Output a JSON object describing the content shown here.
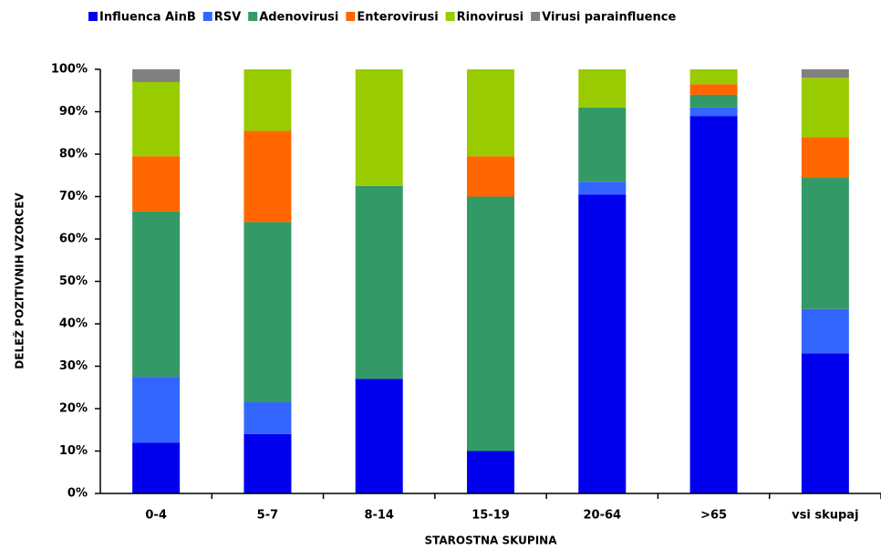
{
  "chart_data": {
    "type": "stacked_bar",
    "categories": [
      "0-4",
      "5-7",
      "8-14",
      "15-19",
      "20-64",
      ">65",
      "vsi skupaj"
    ],
    "series": [
      {
        "name": "Influenca AinB",
        "color": "#0000ee",
        "values": [
          12,
          14,
          27,
          10,
          70.5,
          89,
          33
        ]
      },
      {
        "name": "RSV",
        "color": "#3366ff",
        "values": [
          15.5,
          7.5,
          0,
          0,
          3,
          2,
          10.5
        ]
      },
      {
        "name": "Adenovirusi",
        "color": "#339966",
        "values": [
          39,
          42.5,
          45.5,
          60,
          17.5,
          3,
          31
        ]
      },
      {
        "name": "Enterovirusi",
        "color": "#ff6600",
        "values": [
          13,
          21.5,
          0,
          9.5,
          0,
          2.5,
          9.5
        ]
      },
      {
        "name": "Rinovirusi",
        "color": "#99cc00",
        "values": [
          17.5,
          14.5,
          27.5,
          20.5,
          9,
          3.5,
          14
        ]
      },
      {
        "name": "Virusi parainfluence",
        "color": "#808080",
        "values": [
          3,
          0,
          0,
          0,
          0,
          0,
          2
        ]
      }
    ],
    "ylim": [
      0,
      100
    ],
    "yticks": [
      {
        "value": 0,
        "label": "0%"
      },
      {
        "value": 10,
        "label": "10%"
      },
      {
        "value": 20,
        "label": "20%"
      },
      {
        "value": 30,
        "label": "30%"
      },
      {
        "value": 40,
        "label": "40%"
      },
      {
        "value": 50,
        "label": "50%"
      },
      {
        "value": 60,
        "label": "60%"
      },
      {
        "value": 70,
        "label": "70%"
      },
      {
        "value": 80,
        "label": "80%"
      },
      {
        "value": 90,
        "label": "90%"
      },
      {
        "value": 100,
        "label": "100%"
      }
    ],
    "xlabel": "STAROSTNA SKUPINA",
    "ylabel": "DELEŽ POZITIVNIH VZORCEV",
    "legend": "top"
  }
}
